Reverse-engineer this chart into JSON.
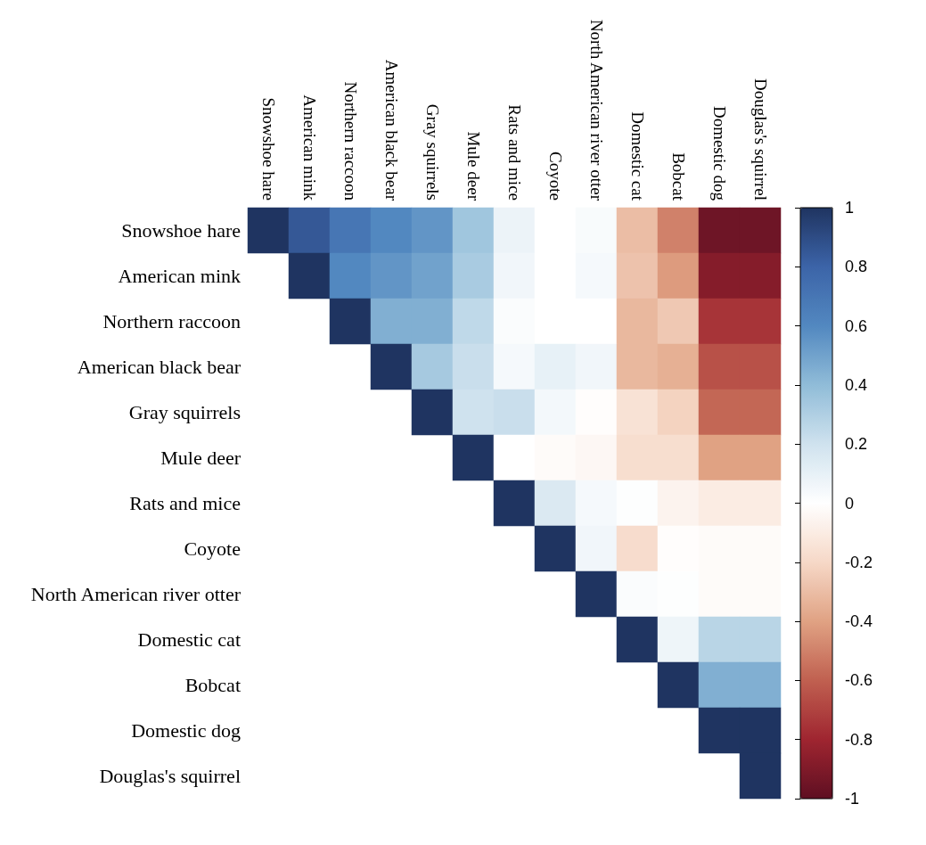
{
  "chart_data": {
    "type": "heatmap",
    "categories": [
      "Snowshoe hare",
      "American mink",
      "Northern raccoon",
      "American black bear",
      "Gray squirrels",
      "Mule deer",
      "Rats and mice",
      "Coyote",
      "North American river otter",
      "Domestic cat",
      "Bobcat",
      "Domestic dog",
      "Douglas's squirrel"
    ],
    "y_categories": [
      "Snowshoe hare",
      "American mink",
      "Northern raccoon",
      "American black bear",
      "Gray squirrels",
      "Mule deer",
      "Rats and mice",
      "Coyote",
      "North American river otter",
      "Domestic cat",
      "Bobcat",
      "Domestic dog",
      "Douglas's squirrel"
    ],
    "cells": [
      [
        1,
        0.85,
        0.7,
        0.6,
        0.55,
        0.35,
        0.08,
        0.0,
        0.03,
        -0.3,
        -0.5,
        -0.95,
        -0.95
      ],
      [
        null,
        1,
        0.6,
        0.55,
        0.5,
        0.32,
        0.06,
        0.0,
        0.04,
        -0.28,
        -0.42,
        -0.88,
        -0.88
      ],
      [
        null,
        null,
        1,
        0.45,
        0.45,
        0.25,
        0.02,
        0.0,
        0.0,
        -0.32,
        -0.26,
        -0.75,
        -0.75
      ],
      [
        null,
        null,
        null,
        1,
        0.33,
        0.22,
        0.04,
        0.1,
        0.06,
        -0.32,
        -0.35,
        -0.65,
        -0.65
      ],
      [
        null,
        null,
        null,
        null,
        1,
        0.2,
        0.22,
        0.05,
        -0.01,
        -0.15,
        -0.22,
        -0.58,
        -0.58
      ],
      [
        null,
        null,
        null,
        null,
        null,
        1,
        0.0,
        -0.02,
        -0.04,
        -0.17,
        -0.17,
        -0.4,
        -0.4
      ],
      [
        null,
        null,
        null,
        null,
        null,
        null,
        1,
        0.15,
        0.04,
        0.01,
        -0.06,
        -0.1,
        -0.1
      ],
      [
        null,
        null,
        null,
        null,
        null,
        null,
        null,
        1,
        0.06,
        -0.18,
        -0.01,
        -0.02,
        -0.02
      ],
      [
        null,
        null,
        null,
        null,
        null,
        null,
        null,
        null,
        1,
        0.02,
        0.01,
        -0.02,
        -0.02
      ],
      [
        null,
        null,
        null,
        null,
        null,
        null,
        null,
        null,
        null,
        1,
        0.07,
        0.27,
        0.27
      ],
      [
        null,
        null,
        null,
        null,
        null,
        null,
        null,
        null,
        null,
        null,
        1,
        0.45,
        0.45
      ],
      [
        null,
        null,
        null,
        null,
        null,
        null,
        null,
        null,
        null,
        null,
        null,
        1,
        1
      ],
      [
        null,
        null,
        null,
        null,
        null,
        null,
        null,
        null,
        null,
        null,
        null,
        null,
        1
      ]
    ],
    "clim": [
      -1,
      1
    ],
    "cticks": [
      -1,
      -0.8,
      -0.6,
      -0.4,
      -0.2,
      0,
      0.2,
      0.4,
      0.6,
      0.8,
      1
    ]
  }
}
